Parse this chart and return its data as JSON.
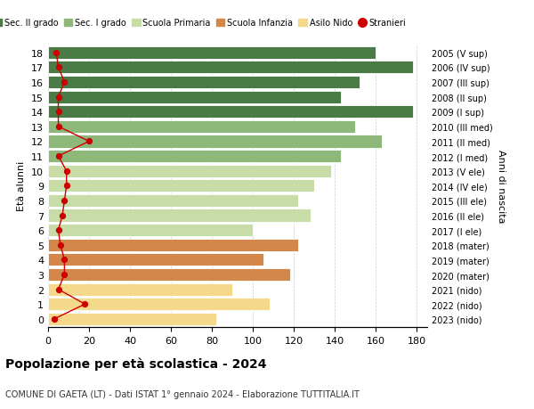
{
  "ages": [
    0,
    1,
    2,
    3,
    4,
    5,
    6,
    7,
    8,
    9,
    10,
    11,
    12,
    13,
    14,
    15,
    16,
    17,
    18
  ],
  "years": [
    "2023 (nido)",
    "2022 (nido)",
    "2021 (nido)",
    "2020 (mater)",
    "2019 (mater)",
    "2018 (mater)",
    "2017 (I ele)",
    "2016 (II ele)",
    "2015 (III ele)",
    "2014 (IV ele)",
    "2013 (V ele)",
    "2012 (I med)",
    "2011 (II med)",
    "2010 (III med)",
    "2009 (I sup)",
    "2008 (II sup)",
    "2007 (III sup)",
    "2006 (IV sup)",
    "2005 (V sup)"
  ],
  "values": [
    82,
    108,
    90,
    118,
    105,
    122,
    100,
    128,
    122,
    130,
    138,
    143,
    163,
    150,
    178,
    143,
    152,
    178,
    160
  ],
  "stranieri": [
    3,
    18,
    5,
    8,
    8,
    6,
    5,
    7,
    8,
    9,
    9,
    5,
    20,
    5,
    5,
    5,
    8,
    5,
    4
  ],
  "bar_colors": [
    "#f5d98b",
    "#f5d98b",
    "#f5d98b",
    "#d4874a",
    "#d4874a",
    "#d4874a",
    "#c8dca8",
    "#c8dca8",
    "#c8dca8",
    "#c8dca8",
    "#c8dca8",
    "#8db87a",
    "#8db87a",
    "#8db87a",
    "#4a7a45",
    "#4a7a45",
    "#4a7a45",
    "#4a7a45",
    "#4a7a45"
  ],
  "legend_labels": [
    "Sec. II grado",
    "Sec. I grado",
    "Scuola Primaria",
    "Scuola Infanzia",
    "Asilo Nido",
    "Stranieri"
  ],
  "legend_colors": [
    "#4a7a45",
    "#8db87a",
    "#c8dca8",
    "#d4874a",
    "#f5d98b",
    "#cc0000"
  ],
  "title": "Popolazione per età scolastica - 2024",
  "subtitle": "COMUNE DI GAETA (LT) - Dati ISTAT 1° gennaio 2024 - Elaborazione TUTTITALIA.IT",
  "ylabel": "Età alunni",
  "right_label": "Anni di nascita",
  "xlim": [
    0,
    185
  ],
  "xticks": [
    0,
    20,
    40,
    60,
    80,
    100,
    120,
    140,
    160,
    180
  ],
  "background_color": "#ffffff",
  "grid_color": "#cccccc",
  "bar_height": 0.85,
  "stranieri_color": "#cc0000"
}
